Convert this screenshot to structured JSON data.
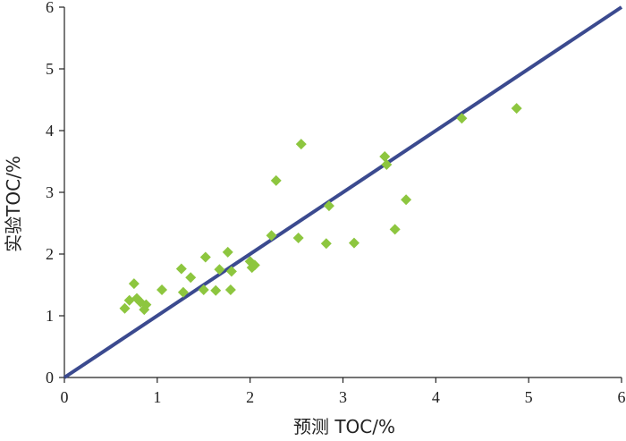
{
  "chart_data": {
    "type": "scatter",
    "xlabel": "预测 TOC/%",
    "ylabel": "实验TOC/%",
    "xlim": [
      0,
      6
    ],
    "ylim": [
      0,
      6
    ],
    "x_ticks": [
      "0",
      "1",
      "2",
      "3",
      "4",
      "5",
      "6"
    ],
    "y_ticks": [
      "0",
      "1",
      "2",
      "3",
      "4",
      "5",
      "6"
    ],
    "grid": false,
    "legend": "none",
    "reference_line": {
      "x": [
        0,
        6
      ],
      "y": [
        0,
        6
      ],
      "color": "#3b4a8f"
    },
    "series": [
      {
        "marker": "diamond",
        "color": "#8dc63f",
        "points": [
          [
            0.65,
            1.12
          ],
          [
            0.7,
            1.25
          ],
          [
            0.75,
            1.52
          ],
          [
            0.78,
            1.28
          ],
          [
            0.82,
            1.22
          ],
          [
            0.86,
            1.1
          ],
          [
            0.88,
            1.18
          ],
          [
            1.05,
            1.42
          ],
          [
            1.26,
            1.76
          ],
          [
            1.28,
            1.38
          ],
          [
            1.36,
            1.62
          ],
          [
            1.5,
            1.42
          ],
          [
            1.52,
            1.95
          ],
          [
            1.63,
            1.41
          ],
          [
            1.67,
            1.75
          ],
          [
            1.76,
            2.03
          ],
          [
            1.79,
            1.42
          ],
          [
            1.8,
            1.72
          ],
          [
            2.0,
            1.88
          ],
          [
            2.02,
            1.78
          ],
          [
            2.05,
            1.82
          ],
          [
            2.23,
            2.3
          ],
          [
            2.28,
            3.19
          ],
          [
            2.52,
            2.26
          ],
          [
            2.55,
            3.78
          ],
          [
            2.82,
            2.17
          ],
          [
            2.85,
            2.78
          ],
          [
            3.12,
            2.18
          ],
          [
            3.45,
            3.58
          ],
          [
            3.47,
            3.45
          ],
          [
            3.56,
            2.4
          ],
          [
            3.68,
            2.88
          ],
          [
            4.28,
            4.2
          ],
          [
            4.87,
            4.36
          ]
        ]
      }
    ]
  }
}
